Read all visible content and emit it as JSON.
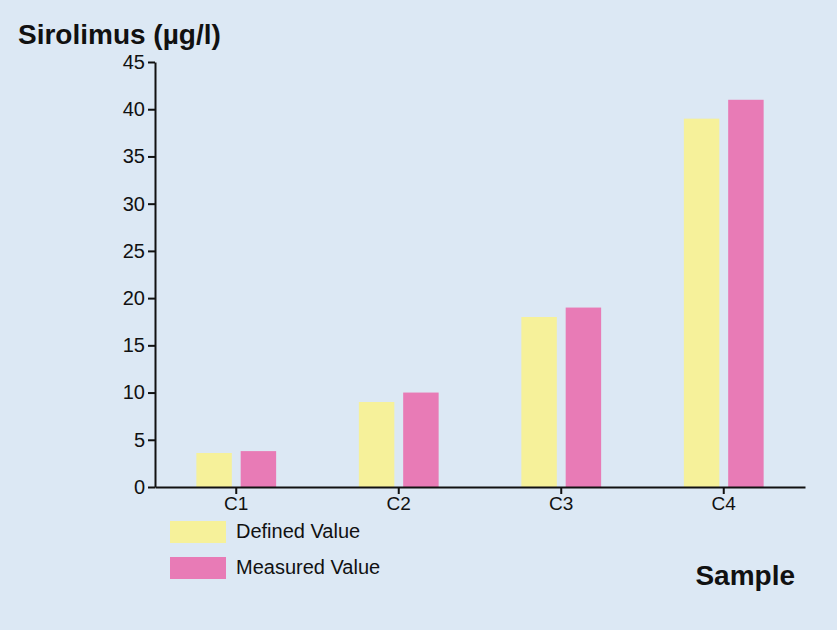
{
  "chart_data": {
    "type": "bar",
    "y_label": "Sirolimus (µg/l)",
    "x_label": "Sample",
    "categories": [
      "C1",
      "C2",
      "C3",
      "C4"
    ],
    "series": [
      {
        "name": "Defined Value",
        "color": "#f6f19a",
        "values": [
          3.6,
          9,
          18,
          39
        ]
      },
      {
        "name": "Measured Value",
        "color": "#e87bb6",
        "values": [
          3.8,
          10,
          19,
          41
        ]
      }
    ],
    "ylim": [
      0,
      45
    ],
    "yticks": [
      0,
      5,
      10,
      15,
      20,
      25,
      30,
      35,
      40,
      45
    ],
    "grid": false,
    "legend": "bottom-left"
  }
}
